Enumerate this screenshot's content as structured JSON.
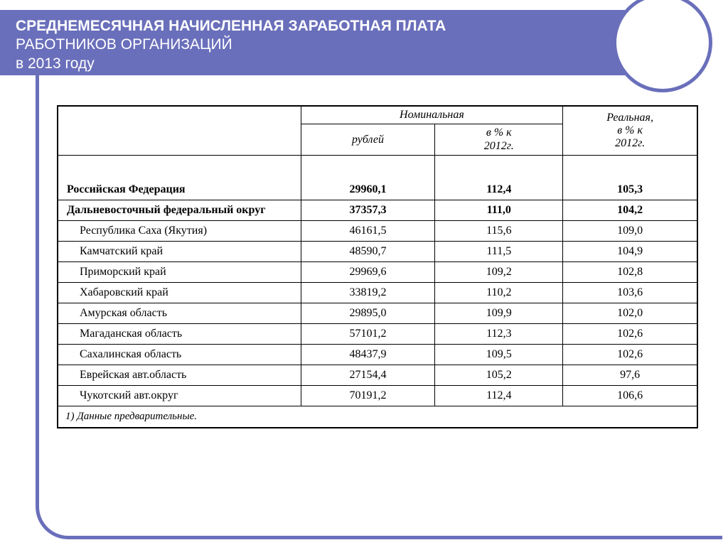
{
  "header": {
    "line1": "СРЕДНЕМЕСЯЧНАЯ НАЧИСЛЕННАЯ ЗАРАБОТНАЯ ПЛАТА",
    "line2": "РАБОТНИКОВ ОРГАНИЗАЦИЙ",
    "line3": "в 2013 году"
  },
  "colors": {
    "accent": "#6a6fbb",
    "text": "#000000",
    "page": "#ffffff"
  },
  "table": {
    "headers": {
      "nominal_group": "Номинальная",
      "rub": "рублей",
      "pct_2012_nominal": "в % к\n2012г.",
      "real_group": "Реальная,\nв % к\n2012г."
    },
    "rows": [
      {
        "name": "Российская Федерация",
        "rub": "29960,1",
        "pct": "112,4",
        "real": "105,3",
        "bold": true,
        "indent": false
      },
      {
        "name": "Дальневосточный федеральный округ",
        "rub": "37357,3",
        "pct": "111,0",
        "real": "104,2",
        "bold": true,
        "indent": false
      },
      {
        "name": "Республика Саха (Якутия)",
        "rub": "46161,5",
        "pct": "115,6",
        "real": "109,0",
        "bold": false,
        "indent": true
      },
      {
        "name": "Камчатский край",
        "rub": "48590,7",
        "pct": "111,5",
        "real": "104,9",
        "bold": false,
        "indent": true
      },
      {
        "name": "Приморский край",
        "rub": "29969,6",
        "pct": "109,2",
        "real": "102,8",
        "bold": false,
        "indent": true
      },
      {
        "name": "Хабаровский край",
        "rub": "33819,2",
        "pct": "110,2",
        "real": "103,6",
        "bold": false,
        "indent": true
      },
      {
        "name": "Амурская область",
        "rub": "29895,0",
        "pct": "109,9",
        "real": "102,0",
        "bold": false,
        "indent": true
      },
      {
        "name": "Магаданская область",
        "rub": "57101,2",
        "pct": "112,3",
        "real": "102,6",
        "bold": false,
        "indent": true
      },
      {
        "name": "Сахалинская область",
        "rub": "48437,9",
        "pct": "109,5",
        "real": "102,6",
        "bold": false,
        "indent": true
      },
      {
        "name": "Еврейская авт.область",
        "rub": "27154,4",
        "pct": "105,2",
        "real": "97,6",
        "bold": false,
        "indent": true
      },
      {
        "name": "Чукотский авт.округ",
        "rub": "70191,2",
        "pct": "112,4",
        "real": "106,6",
        "bold": false,
        "indent": true
      }
    ],
    "footnote": "1) Данные предварительные."
  }
}
